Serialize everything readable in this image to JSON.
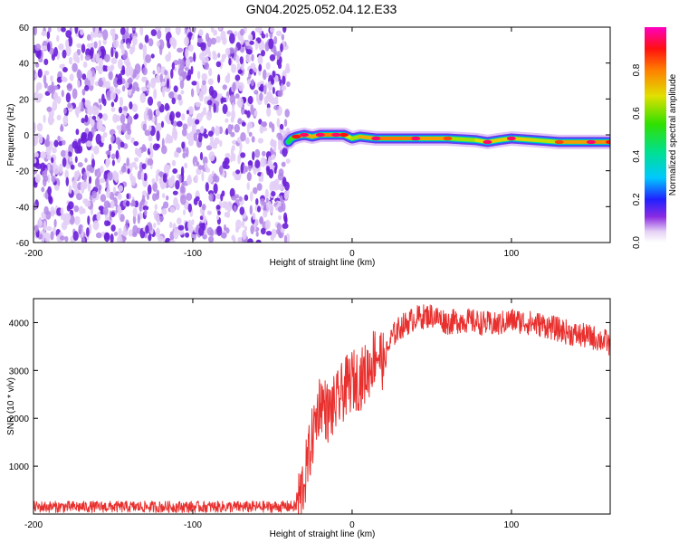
{
  "title": "GN04.2025.052.04.12.E33",
  "chart_data": [
    {
      "type": "heatmap",
      "title": "GN04.2025.052.04.12.E33",
      "xlabel": "Height of straight line (km)",
      "ylabel": "Frequency (Hz)",
      "xlim": [
        -200,
        162
      ],
      "ylim": [
        -60,
        60
      ],
      "x_ticks": [
        -200,
        -100,
        0,
        100
      ],
      "y_ticks": [
        -60,
        -40,
        -20,
        0,
        20,
        40,
        60
      ],
      "noise_region_x": [
        -200,
        -40
      ],
      "signal_track": [
        {
          "x": -40,
          "y": -4,
          "amp": 0.2
        },
        {
          "x": -38,
          "y": -2,
          "amp": 0.45
        },
        {
          "x": -35,
          "y": -1,
          "amp": 0.9
        },
        {
          "x": -30,
          "y": 0,
          "amp": 0.95
        },
        {
          "x": -25,
          "y": -1,
          "amp": 0.8
        },
        {
          "x": -20,
          "y": 0,
          "amp": 0.95
        },
        {
          "x": -10,
          "y": 0,
          "amp": 0.95
        },
        {
          "x": -5,
          "y": 0,
          "amp": 0.9
        },
        {
          "x": 0,
          "y": -2,
          "amp": 0.7
        },
        {
          "x": 5,
          "y": -1,
          "amp": 0.8
        },
        {
          "x": 15,
          "y": -2,
          "amp": 0.95
        },
        {
          "x": 40,
          "y": -2,
          "amp": 0.95
        },
        {
          "x": 60,
          "y": -2,
          "amp": 0.85
        },
        {
          "x": 78,
          "y": -3,
          "amp": 0.65
        },
        {
          "x": 85,
          "y": -4,
          "amp": 0.95
        },
        {
          "x": 92,
          "y": -3,
          "amp": 0.7
        },
        {
          "x": 100,
          "y": -2,
          "amp": 0.95
        },
        {
          "x": 115,
          "y": -3,
          "amp": 0.7
        },
        {
          "x": 130,
          "y": -4,
          "amp": 0.85
        },
        {
          "x": 150,
          "y": -4,
          "amp": 0.95
        },
        {
          "x": 162,
          "y": -4,
          "amp": 0.9
        }
      ],
      "colorbar": {
        "label": "Normalized spectral amplitude",
        "ticks": [
          0.0,
          0.2,
          0.4,
          0.6,
          0.8
        ],
        "range": [
          0,
          1
        ]
      }
    },
    {
      "type": "line",
      "xlabel": "Height of straight line (km)",
      "ylabel": "SNR (10 * v/v)",
      "xlim": [
        -200,
        162
      ],
      "ylim": [
        0,
        4500
      ],
      "x_ticks": [
        -200,
        -100,
        0,
        100
      ],
      "y_ticks": [
        1000,
        2000,
        3000,
        4000
      ],
      "series": [
        {
          "color": "#e8312f",
          "x": [
            -200,
            -150,
            -100,
            -50,
            -35,
            -30,
            -25,
            -20,
            -15,
            -10,
            -5,
            0,
            5,
            10,
            15,
            20,
            25,
            30,
            40,
            50,
            60,
            70,
            80,
            90,
            100,
            110,
            120,
            130,
            140,
            150,
            160,
            162
          ],
          "y": [
            150,
            150,
            150,
            150,
            160,
            700,
            1600,
            2400,
            2100,
            2300,
            2600,
            2800,
            2800,
            3000,
            3400,
            3200,
            3700,
            3900,
            4100,
            4150,
            4000,
            4050,
            4000,
            3950,
            4050,
            4000,
            3950,
            3850,
            3750,
            3700,
            3600,
            3500
          ]
        }
      ]
    }
  ]
}
